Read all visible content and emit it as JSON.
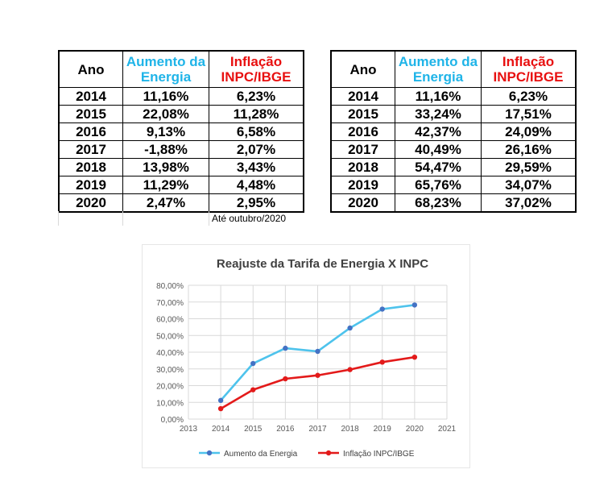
{
  "table_left": {
    "headers": [
      "Ano",
      "Aumento da Energia",
      "Inflação INPC/IBGE"
    ],
    "header_energy_lines": [
      "Aumento da",
      "Energia"
    ],
    "header_inflation_lines": [
      "Inflação",
      "INPC/IBGE"
    ],
    "rows": [
      [
        "2014",
        "11,16%",
        "6,23%"
      ],
      [
        "2015",
        "22,08%",
        "11,28%"
      ],
      [
        "2016",
        "9,13%",
        "6,58%"
      ],
      [
        "2017",
        "-1,88%",
        "2,07%"
      ],
      [
        "2018",
        "13,98%",
        "3,43%"
      ],
      [
        "2019",
        "11,29%",
        "4,48%"
      ],
      [
        "2020",
        "2,47%",
        "2,95%"
      ]
    ],
    "note": "Até outubro/2020"
  },
  "table_right": {
    "headers": [
      "Ano",
      "Aumento da Energia",
      "Inflação INPC/IBGE"
    ],
    "header_energy_lines": [
      "Aumento da",
      "Energia"
    ],
    "header_inflation_lines": [
      "Inflação",
      "INPC/IBGE"
    ],
    "rows": [
      [
        "2014",
        "11,16%",
        "6,23%"
      ],
      [
        "2015",
        "33,24%",
        "17,51%"
      ],
      [
        "2016",
        "42,37%",
        "24,09%"
      ],
      [
        "2017",
        "40,49%",
        "26,16%"
      ],
      [
        "2018",
        "54,47%",
        "29,59%"
      ],
      [
        "2019",
        "65,76%",
        "34,07%"
      ],
      [
        "2020",
        "68,23%",
        "37,02%"
      ]
    ]
  },
  "colors": {
    "energy": "#4ec3ec",
    "energy_marker": "#4472c4",
    "inflation": "#e31a1a",
    "header_blue": "#1fb4e8",
    "header_red": "#e81010"
  },
  "chart_data": {
    "type": "line",
    "title": "Reajuste da Tarifa de Energia X INPC",
    "x_ticks": [
      2013,
      2014,
      2015,
      2016,
      2017,
      2018,
      2019,
      2020,
      2021
    ],
    "y_tick_labels": [
      "0,00%",
      "10,00%",
      "20,00%",
      "30,00%",
      "40,00%",
      "50,00%",
      "60,00%",
      "70,00%",
      "80,00%"
    ],
    "xlim": [
      2013,
      2021
    ],
    "ylim": [
      0,
      80
    ],
    "grid": true,
    "legend_position": "bottom",
    "series": [
      {
        "name": "Aumento da Energia",
        "x": [
          2014,
          2015,
          2016,
          2017,
          2018,
          2019,
          2020
        ],
        "y": [
          11.16,
          33.24,
          42.37,
          40.49,
          54.47,
          65.76,
          68.23
        ]
      },
      {
        "name": "Inflação INPC/IBGE",
        "x": [
          2014,
          2015,
          2016,
          2017,
          2018,
          2019,
          2020
        ],
        "y": [
          6.23,
          17.51,
          24.09,
          26.16,
          29.59,
          34.07,
          37.02
        ]
      }
    ]
  }
}
